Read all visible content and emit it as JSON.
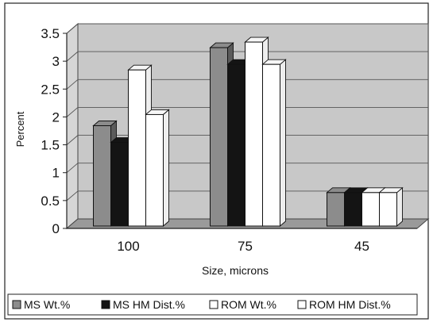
{
  "chart_data": {
    "type": "bar",
    "style": "3d-clustered-column",
    "categories": [
      "100",
      "75",
      "45"
    ],
    "series": [
      {
        "name": "MS Wt.%",
        "values": [
          1.8,
          3.2,
          0.6
        ],
        "color": "#8c8c8c"
      },
      {
        "name": "MS HM Dist.%",
        "values": [
          1.5,
          2.9,
          0.6
        ],
        "color": "#141414"
      },
      {
        "name": "ROM Wt.%",
        "values": [
          2.8,
          3.3,
          0.6
        ],
        "color": "#ffffff"
      },
      {
        "name": "ROM HM Dist.%",
        "values": [
          2.0,
          2.9,
          0.6
        ],
        "color": "#ffffff"
      }
    ],
    "yticks": [
      "0",
      "0.5",
      "1",
      "1.5",
      "2",
      "2.5",
      "3",
      "3.5"
    ],
    "ylim": [
      0,
      3.5
    ],
    "xlabel": "Size, microns",
    "ylabel": "Percent",
    "title": "",
    "grid": true,
    "legend_position": "bottom",
    "plot_background": "#c8c8c8"
  }
}
